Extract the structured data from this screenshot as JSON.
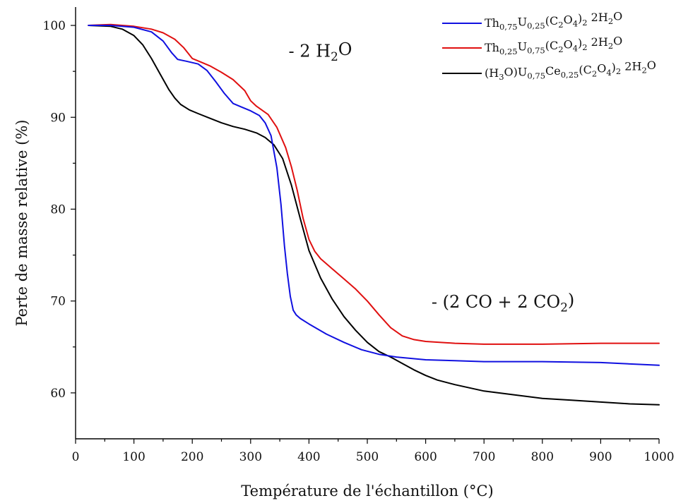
{
  "chart_data": {
    "type": "line",
    "xlabel": "Température de l'échantillon (°C)",
    "ylabel": "Perte de masse relative (%)",
    "xlim": [
      0,
      1000
    ],
    "ylim": [
      55,
      102
    ],
    "x_ticks": [
      0,
      100,
      200,
      300,
      400,
      500,
      600,
      700,
      800,
      900,
      1000
    ],
    "y_ticks": [
      60,
      70,
      80,
      90,
      100
    ],
    "x_tick_labels": [
      "0",
      "100",
      "200",
      "300",
      "400",
      "500",
      "600",
      "700",
      "800",
      "900",
      "1000"
    ],
    "y_tick_labels": [
      "60",
      "70",
      "80",
      "90",
      "100"
    ],
    "grid": false,
    "legend_position": "top-right",
    "annotations": [
      {
        "id": "dehydration",
        "base": "- 2 H",
        "sub": "2",
        "tail": "O",
        "x": 365,
        "y": 96.6
      },
      {
        "id": "decomposition",
        "base": "- (2 CO + 2 CO",
        "sub": "2",
        "tail": ")",
        "x": 610,
        "y": 69.3
      }
    ],
    "series": [
      {
        "name": "Th0,75U0,25(C2O4)2 2H2O",
        "legend_parts": [
          [
            "Th",
            ""
          ],
          [
            "0,75",
            "sub"
          ],
          [
            "U",
            ""
          ],
          [
            "0,25",
            "sub"
          ],
          [
            "(C",
            ""
          ],
          [
            "2",
            "sub"
          ],
          [
            "O",
            ""
          ],
          [
            "4",
            "sub"
          ],
          [
            ")",
            ""
          ],
          [
            "2",
            "sub"
          ],
          [
            " 2H",
            ""
          ],
          [
            "2",
            "sub"
          ],
          [
            "O",
            ""
          ]
        ],
        "color": "#1010e0",
        "x": [
          22,
          60,
          100,
          130,
          150,
          165,
          175,
          190,
          210,
          225,
          240,
          255,
          270,
          285,
          300,
          315,
          325,
          335,
          345,
          352,
          358,
          363,
          368,
          373,
          378,
          385,
          400,
          430,
          460,
          490,
          520,
          550,
          600,
          650,
          700,
          800,
          900,
          1000
        ],
        "y": [
          100,
          100,
          99.8,
          99.3,
          98.3,
          97.0,
          96.3,
          96.1,
          95.8,
          95.1,
          93.9,
          92.6,
          91.5,
          91.1,
          90.7,
          90.2,
          89.4,
          88.0,
          84.5,
          80.5,
          76.0,
          73.0,
          70.5,
          69.0,
          68.5,
          68.1,
          67.5,
          66.4,
          65.5,
          64.7,
          64.2,
          63.9,
          63.6,
          63.5,
          63.4,
          63.4,
          63.3,
          63.0
        ]
      },
      {
        "name": "Th0,25U0,75(C2O4)2 2H2O",
        "legend_parts": [
          [
            "Th",
            ""
          ],
          [
            "0,25",
            "sub"
          ],
          [
            "U",
            ""
          ],
          [
            "0,75",
            "sub"
          ],
          [
            "(C",
            ""
          ],
          [
            "2",
            "sub"
          ],
          [
            "O",
            ""
          ],
          [
            "4",
            "sub"
          ],
          [
            ")",
            ""
          ],
          [
            "2",
            "sub"
          ],
          [
            " 2H",
            ""
          ],
          [
            "2",
            "sub"
          ],
          [
            "O",
            ""
          ]
        ],
        "color": "#e01010",
        "x": [
          22,
          60,
          100,
          130,
          150,
          170,
          185,
          200,
          215,
          230,
          250,
          270,
          290,
          300,
          310,
          330,
          345,
          360,
          370,
          380,
          390,
          400,
          410,
          420,
          440,
          460,
          480,
          500,
          520,
          540,
          560,
          580,
          600,
          650,
          700,
          800,
          900,
          1000
        ],
        "y": [
          100,
          100.1,
          99.9,
          99.6,
          99.2,
          98.5,
          97.6,
          96.4,
          96.0,
          95.6,
          94.9,
          94.1,
          92.9,
          91.8,
          91.2,
          90.3,
          88.9,
          86.7,
          84.6,
          82.0,
          79.0,
          76.7,
          75.4,
          74.6,
          73.5,
          72.4,
          71.3,
          70.0,
          68.5,
          67.1,
          66.2,
          65.8,
          65.6,
          65.4,
          65.3,
          65.3,
          65.4,
          65.4
        ]
      },
      {
        "name": "(H3O)U0,75Ce0,25(C2O4)2 2H2O",
        "legend_parts": [
          [
            "(H",
            ""
          ],
          [
            "3",
            "sub"
          ],
          [
            "O)U",
            ""
          ],
          [
            "0,75",
            "sub"
          ],
          [
            "Ce",
            ""
          ],
          [
            "0,25",
            "sub"
          ],
          [
            "(C",
            ""
          ],
          [
            "2",
            "sub"
          ],
          [
            "O",
            ""
          ],
          [
            "4",
            "sub"
          ],
          [
            ")",
            ""
          ],
          [
            "2",
            "sub"
          ],
          [
            " 2H",
            ""
          ],
          [
            "2",
            "sub"
          ],
          [
            "O",
            ""
          ]
        ],
        "color": "#000000",
        "x": [
          22,
          60,
          80,
          100,
          115,
          130,
          145,
          160,
          170,
          180,
          195,
          210,
          230,
          250,
          270,
          290,
          310,
          325,
          340,
          355,
          370,
          385,
          400,
          420,
          440,
          460,
          480,
          500,
          520,
          540,
          560,
          580,
          600,
          620,
          650,
          700,
          750,
          800,
          850,
          900,
          950,
          1000
        ],
        "y": [
          100,
          99.9,
          99.6,
          98.9,
          97.9,
          96.4,
          94.7,
          93.0,
          92.1,
          91.4,
          90.8,
          90.4,
          89.9,
          89.4,
          89.0,
          88.7,
          88.3,
          87.8,
          87.0,
          85.5,
          82.6,
          79.0,
          75.5,
          72.5,
          70.2,
          68.3,
          66.8,
          65.5,
          64.5,
          63.9,
          63.2,
          62.5,
          61.9,
          61.4,
          60.9,
          60.2,
          59.8,
          59.4,
          59.2,
          59.0,
          58.8,
          58.7
        ]
      }
    ]
  }
}
